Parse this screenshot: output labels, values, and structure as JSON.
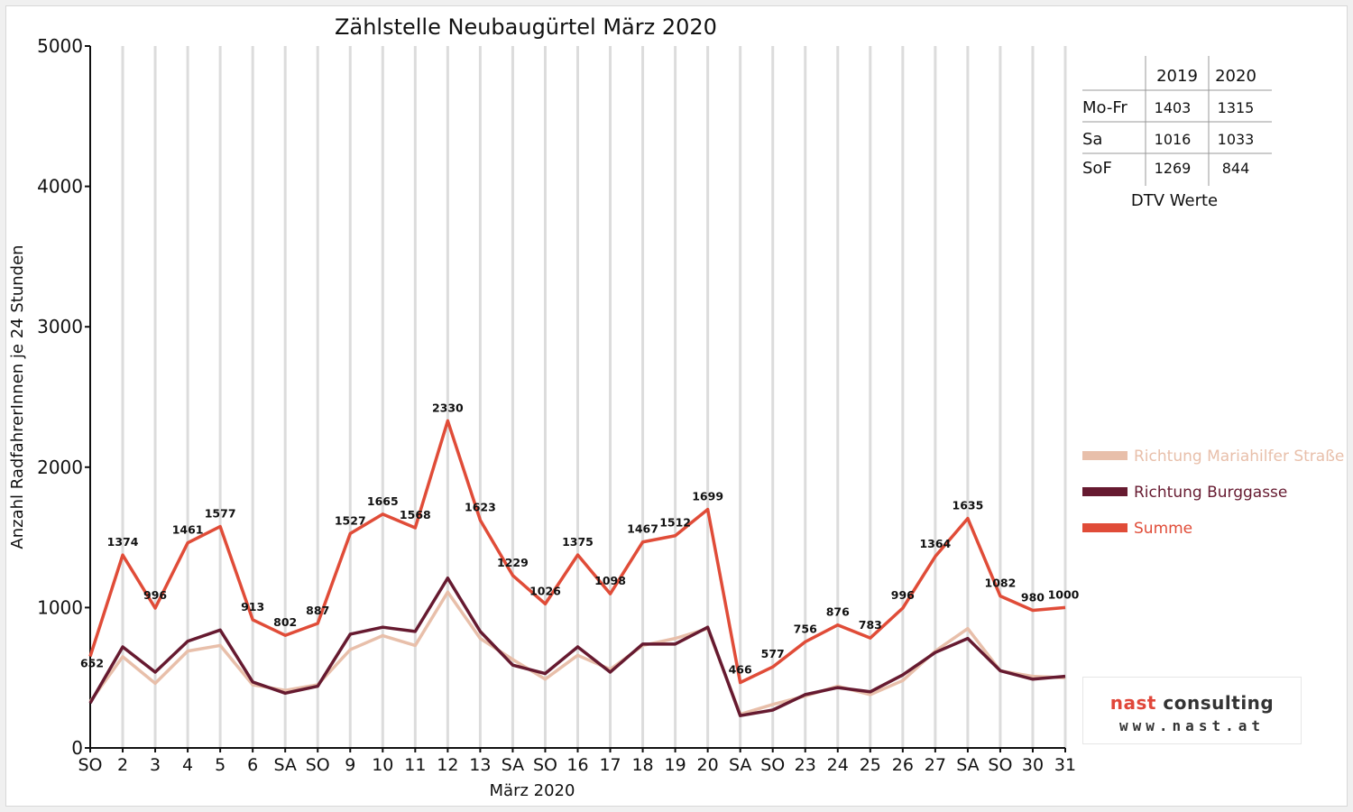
{
  "chart_data": {
    "type": "line",
    "title": "Zählstelle Neubaugürtel März 2020",
    "xlabel": "März 2020",
    "ylabel": "Anzahl RadfahrerInnen je 24 Stunden",
    "ylim": [
      0,
      5000
    ],
    "yticks": [
      0,
      1000,
      2000,
      3000,
      4000,
      5000
    ],
    "grid": "vertical",
    "legend_position": "right",
    "categories": [
      "SO",
      "2",
      "3",
      "4",
      "5",
      "6",
      "SA",
      "SO",
      "9",
      "10",
      "11",
      "12",
      "13",
      "SA",
      "SO",
      "16",
      "17",
      "18",
      "19",
      "20",
      "SA",
      "SO",
      "23",
      "24",
      "25",
      "26",
      "27",
      "SA",
      "SO",
      "30",
      "31"
    ],
    "highlight_categories": [
      "SO"
    ],
    "highlight_color": "#e00000",
    "series": [
      {
        "name": "Richtung Mariahilfer Straße",
        "color": "#e8bfaa",
        "values": [
          330,
          650,
          460,
          690,
          730,
          450,
          410,
          450,
          700,
          800,
          730,
          1110,
          780,
          630,
          490,
          660,
          560,
          730,
          780,
          850,
          240,
          310,
          370,
          440,
          380,
          480,
          690,
          850,
          550,
          510,
          500
        ]
      },
      {
        "name": "Richtung Burggasse",
        "color": "#661a30",
        "values": [
          320,
          720,
          540,
          760,
          840,
          470,
          390,
          440,
          810,
          860,
          830,
          1210,
          830,
          590,
          530,
          720,
          540,
          740,
          740,
          860,
          230,
          270,
          380,
          430,
          400,
          520,
          680,
          780,
          550,
          490,
          510
        ]
      },
      {
        "name": "Summe",
        "color": "#e04c38",
        "values": [
          652,
          1374,
          996,
          1461,
          1577,
          913,
          802,
          887,
          1527,
          1665,
          1568,
          2330,
          1623,
          1229,
          1026,
          1375,
          1098,
          1467,
          1512,
          1699,
          466,
          577,
          756,
          876,
          783,
          996,
          1364,
          1635,
          1082,
          980,
          1000
        ]
      }
    ]
  },
  "dtv_table": {
    "headers": [
      "",
      "2019",
      "2020"
    ],
    "rows": [
      {
        "label": "Mo-Fr",
        "v2019": "1403",
        "v2020": "1315"
      },
      {
        "label": "Sa",
        "v2019": "1016",
        "v2020": "1033"
      },
      {
        "label": "SoF",
        "v2019": "1269",
        "v2020": "844"
      }
    ],
    "caption": "DTV Werte"
  },
  "logo": {
    "brand_part1": "nast",
    "brand_part2": " consulting",
    "url": "www.nast.at"
  }
}
